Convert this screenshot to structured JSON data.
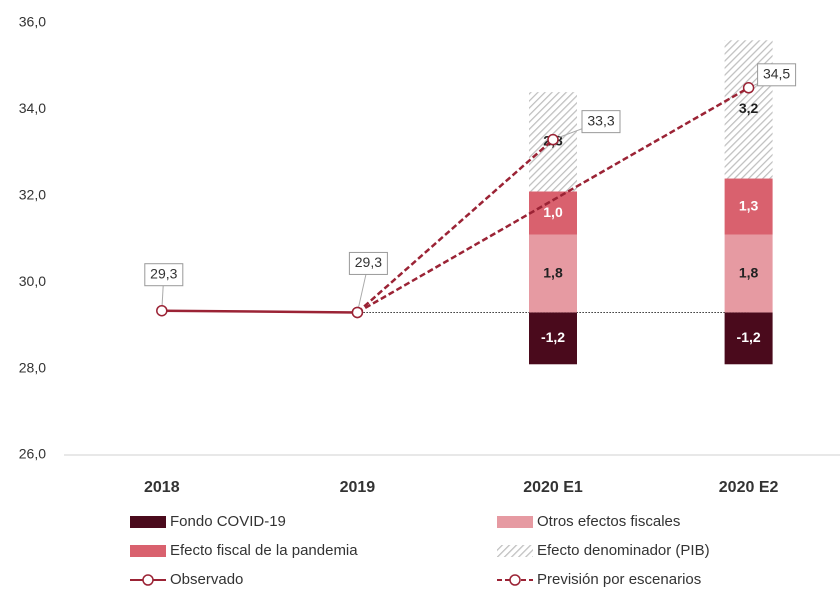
{
  "chart_data": {
    "type": "bar_line",
    "categories": [
      "2018",
      "2019",
      "2020 E1",
      "2020 E2"
    ],
    "ylim": [
      26,
      36
    ],
    "yticks": [
      {
        "value": 26,
        "label": "26,0"
      },
      {
        "value": 28,
        "label": "28,0"
      },
      {
        "value": 30,
        "label": "30,0"
      },
      {
        "value": 32,
        "label": "32,0"
      },
      {
        "value": 34,
        "label": "34,0"
      },
      {
        "value": 36,
        "label": "36,0"
      }
    ],
    "series": [
      {
        "name": "Fondo COVID-19",
        "color": "#4a0a1c",
        "values": [
          null,
          null,
          -1.2,
          -1.2
        ],
        "value_labels": [
          null,
          null,
          "-1,2",
          "-1,2"
        ]
      },
      {
        "name": "Otros efectos fiscales",
        "color": "#e69aa2",
        "values": [
          null,
          null,
          1.8,
          1.8
        ],
        "value_labels": [
          null,
          null,
          "1,8",
          "1,8"
        ]
      },
      {
        "name": "Efecto fiscal de la pandemia",
        "color": "#d9616e",
        "values": [
          null,
          null,
          1.0,
          1.3
        ],
        "value_labels": [
          null,
          null,
          "1,0",
          "1,3"
        ]
      },
      {
        "name": "Efecto denominador (PIB)",
        "color": "#bfbfbf",
        "hatch": true,
        "values": [
          null,
          null,
          2.3,
          3.2
        ],
        "value_labels": [
          null,
          null,
          "2,3",
          "3,2"
        ]
      }
    ],
    "observed": {
      "name": "Observado",
      "color": "#9b2335",
      "values": [
        29.34,
        29.3,
        null,
        null
      ],
      "value_labels": [
        "29,3",
        "29,3",
        null,
        null
      ]
    },
    "forecast": {
      "name": "Previsión por escenarios",
      "color": "#9b2335",
      "values": [
        null,
        29.3,
        33.3,
        34.5
      ],
      "value_labels": [
        null,
        null,
        "33,3",
        "34,5"
      ]
    }
  }
}
